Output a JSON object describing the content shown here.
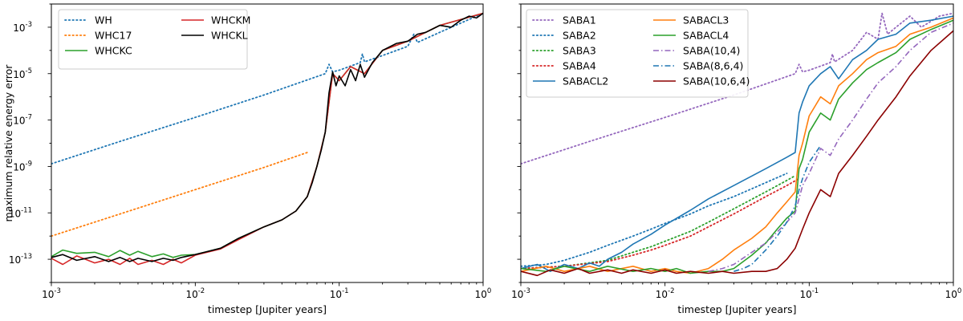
{
  "chart_data": [
    {
      "type": "line",
      "scale": {
        "x": "log",
        "y": "log"
      },
      "xlabel": "timestep [Jupiter years]",
      "ylabel": "maximum relative energy error",
      "xlim": [
        0.001,
        1
      ],
      "ylim": [
        1e-14,
        0.01
      ],
      "xticks": [
        {
          "base": "10",
          "exp": "-3",
          "value": 0.001
        },
        {
          "base": "10",
          "exp": "-2",
          "value": 0.01
        },
        {
          "base": "10",
          "exp": "-1",
          "value": 0.1
        },
        {
          "base": "10",
          "exp": "0",
          "value": 1
        }
      ],
      "yticks": [
        {
          "base": "10",
          "exp": "-13",
          "value": 1e-13
        },
        {
          "base": "10",
          "exp": "-11",
          "value": 1e-11
        },
        {
          "base": "10",
          "exp": "-9",
          "value": 1e-09
        },
        {
          "base": "10",
          "exp": "-7",
          "value": 1e-07
        },
        {
          "base": "10",
          "exp": "-5",
          "value": 1e-05
        },
        {
          "base": "10",
          "exp": "-3",
          "value": 0.001
        }
      ],
      "legend": {
        "position": "top-left",
        "columns": 2
      },
      "series": [
        {
          "name": "WH",
          "color": "#1f77b4",
          "style": "dotted",
          "x": [
            0.001,
            0.003,
            0.01,
            0.03,
            0.08,
            0.085,
            0.09,
            0.1,
            0.14,
            0.145,
            0.15,
            0.2,
            0.3,
            0.33,
            0.35,
            0.5,
            0.7,
            1.0
          ],
          "y": [
            1.3e-09,
            1.2e-08,
            1.3e-07,
            1.2e-06,
            1e-05,
            2.5e-05,
            1.2e-05,
            1.4e-05,
            3e-05,
            7e-05,
            3.2e-05,
            6e-05,
            0.00015,
            0.0005,
            0.00022,
            0.0006,
            0.0015,
            0.004
          ]
        },
        {
          "name": "WHC17",
          "color": "#ff7f0e",
          "style": "dotted",
          "x": [
            0.001,
            0.003,
            0.01,
            0.03,
            0.06
          ],
          "y": [
            1e-12,
            9e-12,
            1e-10,
            9e-10,
            4e-09
          ]
        },
        {
          "name": "WHCKC",
          "color": "#2ca02c",
          "style": "solid",
          "x": [
            0.001,
            0.0012,
            0.0015,
            0.002,
            0.0025,
            0.003,
            0.0035,
            0.004,
            0.005,
            0.006,
            0.007,
            0.008,
            0.01,
            0.015,
            0.02,
            0.03,
            0.04,
            0.05,
            0.06,
            0.07,
            0.08,
            0.09,
            0.1,
            0.12,
            0.15,
            0.2,
            0.3,
            0.5,
            1.0
          ],
          "y": [
            1.3e-13,
            2.5e-13,
            1.8e-13,
            2e-13,
            1.3e-13,
            2.4e-13,
            1.5e-13,
            2.2e-13,
            1.3e-13,
            1.7e-13,
            1.2e-13,
            1.5e-13,
            1.6e-13,
            3e-13,
            8e-13,
            2.5e-12,
            5e-12,
            1.2e-11,
            5e-11,
            1e-09,
            3e-08,
            1e-05,
            5e-06,
            2e-05,
            1e-05,
            0.0001,
            0.00025,
            0.0012,
            0.004
          ]
        },
        {
          "name": "WHCKM",
          "color": "#d62728",
          "style": "solid",
          "x": [
            0.001,
            0.0012,
            0.0015,
            0.002,
            0.0025,
            0.003,
            0.0035,
            0.004,
            0.005,
            0.006,
            0.007,
            0.008,
            0.01,
            0.015,
            0.02,
            0.03,
            0.04,
            0.05,
            0.06,
            0.07,
            0.08,
            0.09,
            0.1,
            0.12,
            0.15,
            0.2,
            0.3,
            0.5,
            1.0
          ],
          "y": [
            1.1e-13,
            6e-14,
            1.4e-13,
            7e-14,
            1e-13,
            6e-14,
            1.1e-13,
            6e-14,
            9e-14,
            6e-14,
            1e-13,
            7e-14,
            1.5e-13,
            2.8e-13,
            7e-13,
            2.5e-12,
            5e-12,
            1.2e-11,
            5e-11,
            1e-09,
            3e-08,
            1e-05,
            5e-06,
            2e-05,
            1e-05,
            0.0001,
            0.00025,
            0.0012,
            0.004
          ]
        },
        {
          "name": "WHCKL",
          "color": "#000000",
          "style": "solid",
          "x": [
            0.001,
            0.0012,
            0.0015,
            0.002,
            0.0025,
            0.003,
            0.0035,
            0.004,
            0.005,
            0.006,
            0.007,
            0.008,
            0.01,
            0.015,
            0.02,
            0.03,
            0.04,
            0.05,
            0.06,
            0.065,
            0.07,
            0.075,
            0.08,
            0.085,
            0.09,
            0.095,
            0.1,
            0.11,
            0.12,
            0.13,
            0.14,
            0.15,
            0.17,
            0.2,
            0.25,
            0.3,
            0.35,
            0.4,
            0.5,
            0.6,
            0.7,
            0.8,
            0.9,
            1.0
          ],
          "y": [
            1.2e-13,
            1.6e-13,
            9e-14,
            1.3e-13,
            8e-14,
            1.2e-13,
            8e-14,
            1.1e-13,
            8e-14,
            1.1e-13,
            9e-14,
            1.2e-13,
            1.6e-13,
            3e-13,
            8e-13,
            2.5e-12,
            5e-12,
            1.2e-11,
            5e-11,
            2e-10,
            1e-09,
            5e-09,
            3e-08,
            1.5e-06,
            1.2e-05,
            3e-06,
            8e-06,
            3e-06,
            1.5e-05,
            5e-06,
            2.5e-05,
            7e-06,
            3e-05,
            0.0001,
            0.0002,
            0.00025,
            0.0005,
            0.0006,
            0.0012,
            0.001,
            0.002,
            0.003,
            0.0025,
            0.004
          ]
        }
      ]
    },
    {
      "type": "line",
      "scale": {
        "x": "log",
        "y": "log"
      },
      "xlabel": "timestep [Jupiter years]",
      "ylabel": "",
      "xlim": [
        0.001,
        1
      ],
      "ylim": [
        1e-14,
        0.01
      ],
      "xticks": [
        {
          "base": "10",
          "exp": "-3",
          "value": 0.001
        },
        {
          "base": "10",
          "exp": "-2",
          "value": 0.01
        },
        {
          "base": "10",
          "exp": "-1",
          "value": 0.1
        },
        {
          "base": "10",
          "exp": "0",
          "value": 1
        }
      ],
      "yticks": [
        {
          "base": "",
          "exp": "",
          "value": 1e-13
        },
        {
          "base": "",
          "exp": "",
          "value": 1e-11
        },
        {
          "base": "",
          "exp": "",
          "value": 1e-09
        },
        {
          "base": "",
          "exp": "",
          "value": 1e-07
        },
        {
          "base": "",
          "exp": "",
          "value": 1e-05
        },
        {
          "base": "",
          "exp": "",
          "value": 0.001
        }
      ],
      "legend": {
        "position": "top-left",
        "columns": 2
      },
      "series": [
        {
          "name": "SABA1",
          "color": "#9467bd",
          "style": "dotted",
          "x": [
            0.001,
            0.003,
            0.01,
            0.03,
            0.08,
            0.085,
            0.09,
            0.1,
            0.14,
            0.145,
            0.15,
            0.2,
            0.25,
            0.3,
            0.32,
            0.35,
            0.4,
            0.5,
            0.6,
            0.8,
            1.0
          ],
          "y": [
            1.3e-09,
            1.2e-08,
            1.3e-07,
            1.2e-06,
            1e-05,
            2.5e-05,
            1.2e-05,
            1.4e-05,
            3e-05,
            7e-05,
            3.2e-05,
            0.0001,
            0.0006,
            0.0003,
            0.004,
            0.0005,
            0.001,
            0.003,
            0.001,
            0.003,
            0.004
          ]
        },
        {
          "name": "SABA2",
          "color": "#1f77b4",
          "style": "dotted",
          "x": [
            0.001,
            0.0015,
            0.002,
            0.003,
            0.004,
            0.006,
            0.008,
            0.01,
            0.015,
            0.02,
            0.03,
            0.05,
            0.07
          ],
          "y": [
            5e-14,
            6e-14,
            9e-14,
            2e-13,
            4e-13,
            1e-12,
            2e-12,
            3.5e-12,
            9e-12,
            2e-11,
            5e-11,
            2e-10,
            5e-10
          ]
        },
        {
          "name": "SABA3",
          "color": "#2ca02c",
          "style": "dotted",
          "x": [
            0.001,
            0.002,
            0.004,
            0.006,
            0.008,
            0.01,
            0.015,
            0.02,
            0.03,
            0.05,
            0.07,
            0.08
          ],
          "y": [
            4e-14,
            5e-14,
            9e-14,
            2e-13,
            3.5e-13,
            6e-13,
            1.6e-12,
            4e-12,
            1.5e-11,
            8e-11,
            2.5e-10,
            4e-10
          ]
        },
        {
          "name": "SABA4",
          "color": "#d62728",
          "style": "dotted",
          "x": [
            0.001,
            0.002,
            0.004,
            0.006,
            0.008,
            0.01,
            0.015,
            0.02,
            0.03,
            0.05,
            0.07,
            0.085
          ],
          "y": [
            4e-14,
            5e-14,
            8e-14,
            1.5e-13,
            2.5e-13,
            4e-13,
            1e-12,
            2.5e-12,
            9e-12,
            5e-11,
            1.5e-10,
            3e-10
          ]
        },
        {
          "name": "SABACL2",
          "color": "#1f77b4",
          "style": "solid",
          "x": [
            0.001,
            0.0013,
            0.0016,
            0.002,
            0.0025,
            0.003,
            0.0035,
            0.004,
            0.005,
            0.006,
            0.008,
            0.01,
            0.015,
            0.02,
            0.03,
            0.05,
            0.07,
            0.08,
            0.085,
            0.09,
            0.1,
            0.12,
            0.14,
            0.16,
            0.2,
            0.25,
            0.3,
            0.4,
            0.5,
            0.7,
            1.0
          ],
          "y": [
            4e-14,
            6e-14,
            3e-14,
            6e-14,
            4e-14,
            7e-14,
            5e-14,
            1e-13,
            2e-13,
            4.5e-13,
            1.2e-12,
            3e-12,
            1.3e-11,
            4e-11,
            1.5e-10,
            8e-10,
            2.5e-09,
            4e-09,
            2e-07,
            6e-07,
            3e-06,
            1e-05,
            2e-05,
            6e-06,
            4e-05,
            0.0001,
            0.0003,
            0.0005,
            0.0015,
            0.002,
            0.003
          ]
        },
        {
          "name": "SABACL3",
          "color": "#ff7f0e",
          "style": "solid",
          "x": [
            0.001,
            0.0015,
            0.002,
            0.003,
            0.004,
            0.006,
            0.008,
            0.01,
            0.012,
            0.015,
            0.02,
            0.025,
            0.03,
            0.04,
            0.05,
            0.06,
            0.07,
            0.08,
            0.085,
            0.09,
            0.1,
            0.12,
            0.14,
            0.16,
            0.2,
            0.25,
            0.3,
            0.4,
            0.5,
            0.7,
            1.0
          ],
          "y": [
            3e-14,
            5e-14,
            3e-14,
            5e-14,
            3e-14,
            5e-14,
            3e-14,
            4e-14,
            3e-14,
            2.5e-14,
            4e-14,
            1e-13,
            2.5e-13,
            8e-13,
            2.5e-12,
            1e-11,
            3e-11,
            8e-11,
            3e-09,
            1e-08,
            1.5e-07,
            1e-06,
            5e-07,
            3e-06,
            1e-05,
            4e-05,
            8e-05,
            0.00015,
            0.0005,
            0.001,
            0.0025
          ]
        },
        {
          "name": "SABACL4",
          "color": "#2ca02c",
          "style": "solid",
          "x": [
            0.001,
            0.0015,
            0.002,
            0.003,
            0.004,
            0.006,
            0.008,
            0.01,
            0.012,
            0.015,
            0.02,
            0.025,
            0.03,
            0.04,
            0.05,
            0.06,
            0.07,
            0.08,
            0.085,
            0.09,
            0.1,
            0.12,
            0.14,
            0.16,
            0.2,
            0.25,
            0.3,
            0.4,
            0.5,
            0.7,
            1.0
          ],
          "y": [
            4e-14,
            3e-14,
            5e-14,
            3e-14,
            5e-14,
            3e-14,
            4e-14,
            3e-14,
            4e-14,
            2.5e-14,
            3e-14,
            3e-14,
            4e-14,
            1.5e-13,
            5e-13,
            2e-12,
            6e-12,
            1.2e-11,
            8e-10,
            2e-09,
            3e-08,
            2e-07,
            1e-07,
            8e-07,
            4e-06,
            1.5e-05,
            3e-05,
            8e-05,
            0.0003,
            0.0008,
            0.002
          ]
        },
        {
          "name": "SABA(10,4)",
          "color": "#9467bd",
          "style": "dashdot",
          "x": [
            0.02,
            0.025,
            0.03,
            0.04,
            0.05,
            0.06,
            0.07,
            0.08,
            0.09,
            0.1,
            0.12,
            0.14,
            0.16,
            0.2,
            0.25,
            0.3,
            0.4,
            0.5,
            0.7,
            1.0
          ],
          "y": [
            3e-14,
            4e-14,
            6e-14,
            2e-13,
            5e-13,
            1.5e-12,
            4e-12,
            1e-11,
            1.5e-10,
            5e-10,
            6e-09,
            3e-09,
            1.5e-08,
            1e-07,
            8e-07,
            4e-06,
            2e-05,
            0.0001,
            0.0006,
            0.0015
          ]
        },
        {
          "name": "SABA(8,6,4)",
          "color": "#1f77b4",
          "style": "dashdot",
          "x": [
            0.03,
            0.035,
            0.04,
            0.05,
            0.06,
            0.07,
            0.08,
            0.085,
            0.09,
            0.1,
            0.12
          ],
          "y": [
            3e-14,
            4e-14,
            6e-14,
            2.5e-13,
            1e-12,
            4e-12,
            2e-11,
            1e-10,
            3e-10,
            1.5e-09,
            8e-09
          ]
        },
        {
          "name": "SABA(10,6,4)",
          "color": "#8b0000",
          "style": "solid",
          "x": [
            0.001,
            0.0013,
            0.0016,
            0.002,
            0.0025,
            0.003,
            0.004,
            0.005,
            0.006,
            0.008,
            0.01,
            0.012,
            0.015,
            0.02,
            0.025,
            0.03,
            0.04,
            0.05,
            0.06,
            0.07,
            0.08,
            0.09,
            0.1,
            0.12,
            0.14,
            0.16,
            0.2,
            0.25,
            0.3,
            0.4,
            0.5,
            0.7,
            1.0
          ],
          "y": [
            3e-14,
            2e-14,
            3.5e-14,
            2.5e-14,
            4e-14,
            2.5e-14,
            3.5e-14,
            2.5e-14,
            3.5e-14,
            2.5e-14,
            3.5e-14,
            2.5e-14,
            3e-14,
            2.5e-14,
            3e-14,
            2.5e-14,
            3e-14,
            3e-14,
            4e-14,
            1e-13,
            3e-13,
            2e-12,
            1e-11,
            1e-10,
            5e-11,
            5e-10,
            3e-09,
            2e-08,
            1e-07,
            1e-06,
            8e-06,
            0.0001,
            0.0007
          ]
        }
      ]
    }
  ]
}
